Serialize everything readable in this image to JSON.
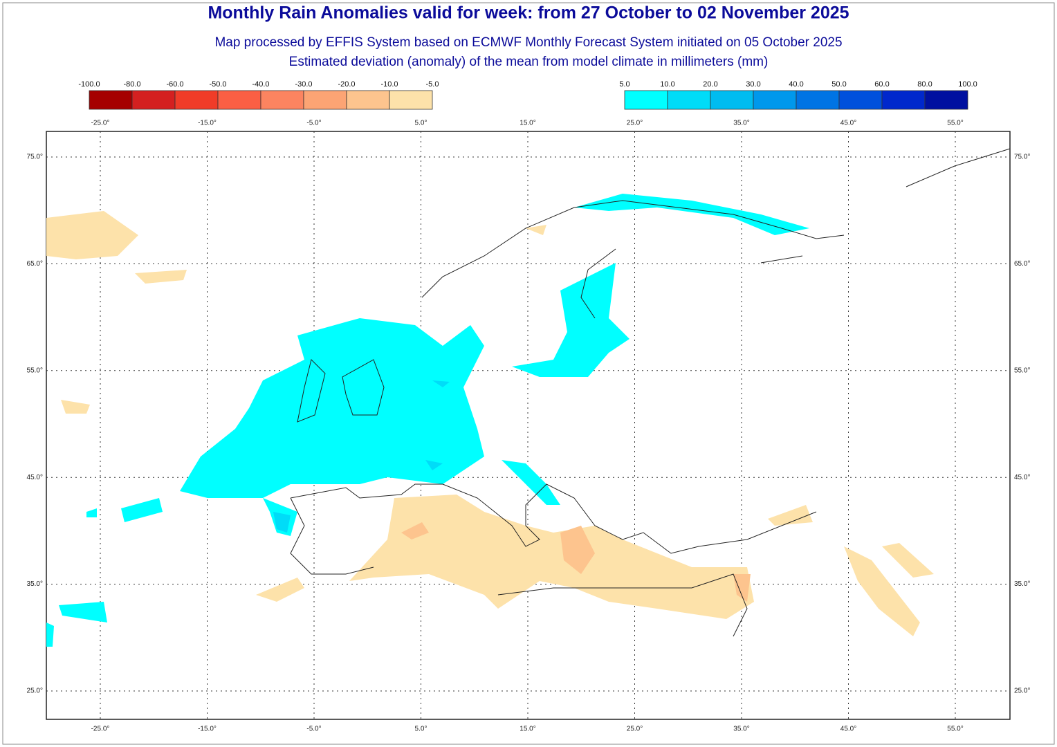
{
  "header": {
    "title": "Monthly Rain Anomalies valid for week: from 27 October to 02 November 2025",
    "subtitle": "Map processed by EFFIS System based on ECMWF Monthly Forecast System initiated on 05 October 2025",
    "description": "Estimated deviation (anomaly) of the mean from model climate in millimeters (mm)"
  },
  "legend": {
    "negative": {
      "labels": [
        "-100.0",
        "-80.0",
        "-60.0",
        "-50.0",
        "-40.0",
        "-30.0",
        "-20.0",
        "-10.0",
        "-5.0"
      ],
      "colors": [
        "#a50000",
        "#d42020",
        "#f03c28",
        "#fb5f44",
        "#fc8460",
        "#fca474",
        "#fdc48e",
        "#fde2aa"
      ]
    },
    "positive": {
      "labels": [
        "5.0",
        "10.0",
        "20.0",
        "30.0",
        "40.0",
        "50.0",
        "60.0",
        "80.0",
        "100.0"
      ],
      "colors": [
        "#00ffff",
        "#00dcf8",
        "#00bcf0",
        "#0098ec",
        "#0074e4",
        "#0050dc",
        "#0028cc",
        "#0010a0"
      ]
    }
  },
  "map": {
    "lon_labels": [
      "-25.0°",
      "-15.0°",
      "-5.0°",
      "5.0°",
      "15.0°",
      "25.0°",
      "35.0°",
      "45.0°",
      "55.0°"
    ],
    "lat_labels": [
      "75.0°",
      "65.0°",
      "55.0°",
      "45.0°",
      "35.0°",
      "25.0°"
    ]
  }
}
